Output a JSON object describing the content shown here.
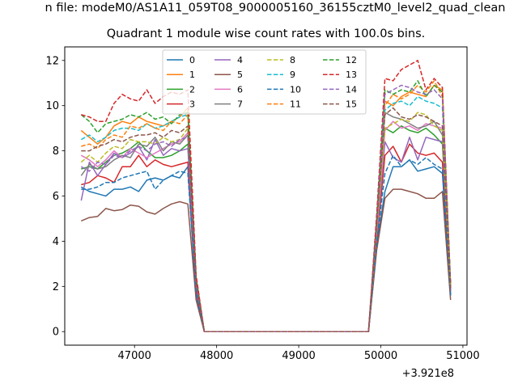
{
  "chart_data": {
    "type": "line",
    "suptitle": "n file: modeM0/AS1A11_059T08_9000005160_36155cztM0_level2_quad_clean",
    "title": "Quadrant 1 module wise count rates with 100.0s bins.",
    "x_offset_label": "+3.921e8",
    "xlim": [
      46150,
      51050
    ],
    "ylim": [
      -0.6,
      12.6
    ],
    "xticks": [
      47000,
      48000,
      49000,
      50000,
      51000
    ],
    "yticks": [
      0,
      2,
      4,
      6,
      8,
      10,
      12
    ],
    "xlabel": "",
    "ylabel": "",
    "legend": "top-center",
    "x": [
      46350,
      46450,
      46550,
      46650,
      46750,
      46850,
      46950,
      47050,
      47150,
      47250,
      47350,
      47450,
      47550,
      47650,
      47750,
      47850,
      47950,
      48050,
      48150,
      48250,
      48350,
      48450,
      48550,
      48650,
      48750,
      48850,
      48950,
      49050,
      49150,
      49250,
      49350,
      49450,
      49550,
      49650,
      49750,
      49850,
      49950,
      50050,
      50150,
      50250,
      50350,
      50450,
      50550,
      50650,
      50750,
      50850
    ],
    "series": [
      {
        "name": "0",
        "color": "#1f77b4",
        "dash": false,
        "values": [
          6.4,
          6.2,
          6.1,
          6.0,
          6.3,
          6.3,
          6.4,
          6.2,
          6.7,
          6.8,
          6.7,
          6.9,
          6.8,
          7.3,
          1.5,
          0,
          0,
          0,
          0,
          0,
          0,
          0,
          0,
          0,
          0,
          0,
          0,
          0,
          0,
          0,
          0,
          0,
          0,
          0,
          0,
          0,
          3.8,
          6.2,
          7.3,
          7.3,
          7.6,
          7.1,
          7.2,
          7.3,
          7.0,
          1.6
        ]
      },
      {
        "name": "1",
        "color": "#ff7f0e",
        "dash": false,
        "values": [
          8.9,
          8.6,
          8.3,
          8.6,
          9.1,
          9.3,
          9.2,
          9.5,
          9.3,
          9.2,
          9.1,
          9.3,
          9.5,
          9.9,
          2.3,
          0,
          0,
          0,
          0,
          0,
          0,
          0,
          0,
          0,
          0,
          0,
          0,
          0,
          0,
          0,
          0,
          0,
          0,
          0,
          0,
          0,
          4.6,
          10.2,
          10.0,
          10.4,
          10.6,
          10.5,
          10.4,
          10.9,
          10.7,
          2.0
        ]
      },
      {
        "name": "2",
        "color": "#2ca02c",
        "dash": false,
        "values": [
          7.2,
          7.3,
          7.2,
          7.5,
          7.8,
          7.9,
          8.1,
          8.4,
          8.0,
          7.7,
          7.7,
          7.8,
          8.0,
          8.3,
          2.0,
          0,
          0,
          0,
          0,
          0,
          0,
          0,
          0,
          0,
          0,
          0,
          0,
          0,
          0,
          0,
          0,
          0,
          0,
          0,
          0,
          0,
          4.3,
          9.0,
          8.8,
          9.1,
          8.9,
          8.8,
          9.0,
          8.7,
          8.3,
          1.8
        ]
      },
      {
        "name": "3",
        "color": "#d62728",
        "dash": false,
        "values": [
          6.5,
          6.6,
          6.9,
          6.8,
          6.6,
          7.3,
          7.3,
          7.8,
          7.3,
          7.6,
          7.4,
          7.3,
          7.4,
          7.5,
          1.8,
          0,
          0,
          0,
          0,
          0,
          0,
          0,
          0,
          0,
          0,
          0,
          0,
          0,
          0,
          0,
          0,
          0,
          0,
          0,
          0,
          0,
          3.9,
          7.8,
          8.2,
          7.5,
          8.3,
          7.9,
          7.8,
          7.9,
          7.5,
          1.6
        ]
      },
      {
        "name": "4",
        "color": "#9467bd",
        "dash": false,
        "values": [
          5.8,
          7.5,
          6.9,
          7.4,
          7.9,
          7.7,
          7.9,
          8.2,
          7.6,
          8.5,
          7.8,
          8.1,
          8.0,
          8.1,
          2.1,
          0,
          0,
          0,
          0,
          0,
          0,
          0,
          0,
          0,
          0,
          0,
          0,
          0,
          0,
          0,
          0,
          0,
          0,
          0,
          0,
          0,
          4.2,
          8.4,
          7.7,
          7.5,
          8.6,
          7.6,
          8.6,
          8.5,
          8.4,
          1.8
        ]
      },
      {
        "name": "5",
        "color": "#8c564b",
        "dash": false,
        "values": [
          4.9,
          5.05,
          5.1,
          5.45,
          5.35,
          5.4,
          5.6,
          5.55,
          5.3,
          5.2,
          5.45,
          5.65,
          5.75,
          5.65,
          1.4,
          0,
          0,
          0,
          0,
          0,
          0,
          0,
          0,
          0,
          0,
          0,
          0,
          0,
          0,
          0,
          0,
          0,
          0,
          0,
          0,
          0,
          3.6,
          5.9,
          6.3,
          6.3,
          6.2,
          6.1,
          5.9,
          5.9,
          6.2,
          1.4
        ]
      },
      {
        "name": "6",
        "color": "#e377c2",
        "dash": false,
        "values": [
          7.8,
          7.6,
          7.3,
          7.6,
          8.0,
          7.7,
          8.1,
          7.9,
          7.7,
          7.9,
          8.1,
          8.3,
          8.4,
          8.8,
          2.1,
          0,
          0,
          0,
          0,
          0,
          0,
          0,
          0,
          0,
          0,
          0,
          0,
          0,
          0,
          0,
          0,
          0,
          0,
          0,
          0,
          0,
          4.4,
          8.9,
          9.3,
          9.0,
          9.1,
          8.9,
          9.2,
          9.1,
          9.0,
          1.9
        ]
      },
      {
        "name": "7",
        "color": "#7f7f7f",
        "dash": false,
        "values": [
          6.9,
          7.4,
          7.2,
          7.3,
          7.6,
          7.8,
          7.7,
          8.3,
          8.2,
          8.6,
          8.0,
          8.4,
          8.3,
          8.7,
          2.1,
          0,
          0,
          0,
          0,
          0,
          0,
          0,
          0,
          0,
          0,
          0,
          0,
          0,
          0,
          0,
          0,
          0,
          0,
          0,
          0,
          0,
          4.5,
          9.7,
          9.5,
          9.4,
          9.2,
          9.0,
          9.1,
          9.3,
          8.7,
          1.9
        ]
      },
      {
        "name": "8",
        "color": "#bcbd22",
        "dash": true,
        "values": [
          7.5,
          7.8,
          7.5,
          7.9,
          8.2,
          8.1,
          8.5,
          8.4,
          8.4,
          8.3,
          8.6,
          8.4,
          8.5,
          9.0,
          2.2,
          0,
          0,
          0,
          0,
          0,
          0,
          0,
          0,
          0,
          0,
          0,
          0,
          0,
          0,
          0,
          0,
          0,
          0,
          0,
          0,
          0,
          4.5,
          9.0,
          9.2,
          9.4,
          9.3,
          9.7,
          9.6,
          9.1,
          8.9,
          1.9
        ]
      },
      {
        "name": "9",
        "color": "#17becf",
        "dash": true,
        "values": [
          8.5,
          8.7,
          8.4,
          8.6,
          8.9,
          9.0,
          9.0,
          8.9,
          9.2,
          9.0,
          9.1,
          9.3,
          9.5,
          9.6,
          2.3,
          0,
          0,
          0,
          0,
          0,
          0,
          0,
          0,
          0,
          0,
          0,
          0,
          0,
          0,
          0,
          0,
          0,
          0,
          0,
          0,
          0,
          4.8,
          9.8,
          10.1,
          10.2,
          10.0,
          10.4,
          10.2,
          10.1,
          9.9,
          2.0
        ]
      },
      {
        "name": "10",
        "color": "#1f77b4",
        "dash": true,
        "values": [
          6.3,
          6.3,
          6.4,
          6.6,
          6.6,
          6.8,
          6.9,
          7.0,
          7.1,
          6.3,
          6.7,
          6.9,
          7.1,
          7.0,
          1.7,
          0,
          0,
          0,
          0,
          0,
          0,
          0,
          0,
          0,
          0,
          0,
          0,
          0,
          0,
          0,
          0,
          0,
          0,
          0,
          0,
          0,
          3.9,
          7.0,
          7.8,
          7.3,
          7.6,
          7.4,
          7.7,
          7.4,
          7.2,
          1.6
        ]
      },
      {
        "name": "11",
        "color": "#ff7f0e",
        "dash": true,
        "values": [
          8.2,
          8.3,
          8.1,
          8.5,
          8.7,
          8.6,
          9.1,
          9.0,
          9.2,
          9.0,
          8.9,
          9.3,
          9.2,
          9.6,
          2.3,
          0,
          0,
          0,
          0,
          0,
          0,
          0,
          0,
          0,
          0,
          0,
          0,
          0,
          0,
          0,
          0,
          0,
          0,
          0,
          0,
          0,
          4.6,
          10.0,
          10.5,
          10.3,
          10.5,
          10.9,
          10.6,
          11.1,
          10.4,
          2.0
        ]
      },
      {
        "name": "12",
        "color": "#2ca02c",
        "dash": true,
        "values": [
          9.6,
          9.3,
          8.8,
          9.2,
          9.3,
          9.4,
          9.6,
          9.5,
          9.7,
          9.4,
          9.5,
          9.2,
          9.6,
          9.7,
          2.4,
          0,
          0,
          0,
          0,
          0,
          0,
          0,
          0,
          0,
          0,
          0,
          0,
          0,
          0,
          0,
          0,
          0,
          0,
          0,
          0,
          0,
          5.0,
          10.7,
          10.5,
          10.7,
          10.6,
          11.1,
          10.4,
          10.9,
          10.6,
          2.1
        ]
      },
      {
        "name": "13",
        "color": "#d62728",
        "dash": true,
        "values": [
          9.6,
          9.5,
          9.3,
          9.3,
          10.1,
          10.5,
          10.3,
          10.2,
          10.7,
          10.1,
          10.4,
          10.6,
          10.5,
          10.7,
          2.5,
          0,
          0,
          0,
          0,
          0,
          0,
          0,
          0,
          0,
          0,
          0,
          0,
          0,
          0,
          0,
          0,
          0,
          0,
          0,
          0,
          0,
          5.2,
          11.2,
          11.1,
          11.6,
          11.8,
          12.0,
          10.7,
          11.2,
          10.8,
          2.1
        ]
      },
      {
        "name": "14",
        "color": "#9467bd",
        "dash": true,
        "values": [
          7.3,
          7.1,
          7.5,
          7.4,
          7.8,
          7.7,
          8.0,
          8.2,
          8.0,
          8.3,
          8.4,
          8.2,
          8.5,
          8.6,
          2.1,
          0,
          0,
          0,
          0,
          0,
          0,
          0,
          0,
          0,
          0,
          0,
          0,
          0,
          0,
          0,
          0,
          0,
          0,
          0,
          0,
          0,
          4.8,
          10.5,
          10.7,
          10.9,
          10.8,
          10.6,
          10.5,
          10.7,
          10.3,
          2.0
        ]
      },
      {
        "name": "15",
        "color": "#8c564b",
        "dash": true,
        "values": [
          8.0,
          8.0,
          8.2,
          8.3,
          8.5,
          8.4,
          8.6,
          8.7,
          8.7,
          8.8,
          8.6,
          8.9,
          8.8,
          9.1,
          2.2,
          0,
          0,
          0,
          0,
          0,
          0,
          0,
          0,
          0,
          0,
          0,
          0,
          0,
          0,
          0,
          0,
          0,
          0,
          0,
          0,
          0,
          4.7,
          9.6,
          9.9,
          9.5,
          9.4,
          9.6,
          9.5,
          9.3,
          9.1,
          1.9
        ]
      }
    ]
  }
}
